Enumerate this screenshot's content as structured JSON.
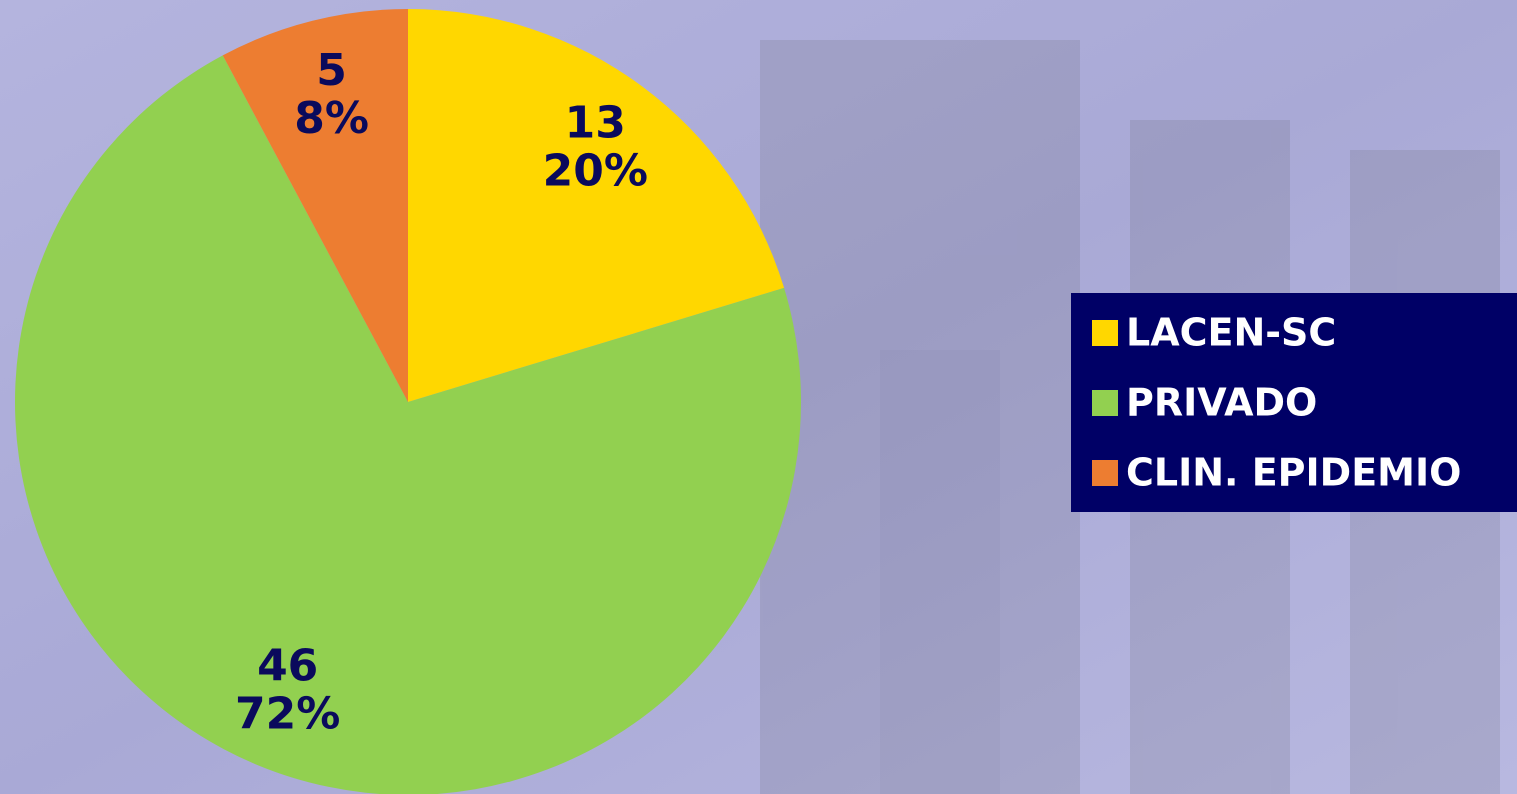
{
  "chart_data": {
    "type": "pie",
    "categories": [
      "LACEN-SC",
      "PRIVADO",
      "CLIN. EPIDEMIO"
    ],
    "values": [
      13,
      46,
      5
    ],
    "percent_labels": [
      "20%",
      "72%",
      "8%"
    ],
    "colors": [
      "#ffd700",
      "#92d050",
      "#ed7d31"
    ],
    "legend": "right"
  }
}
